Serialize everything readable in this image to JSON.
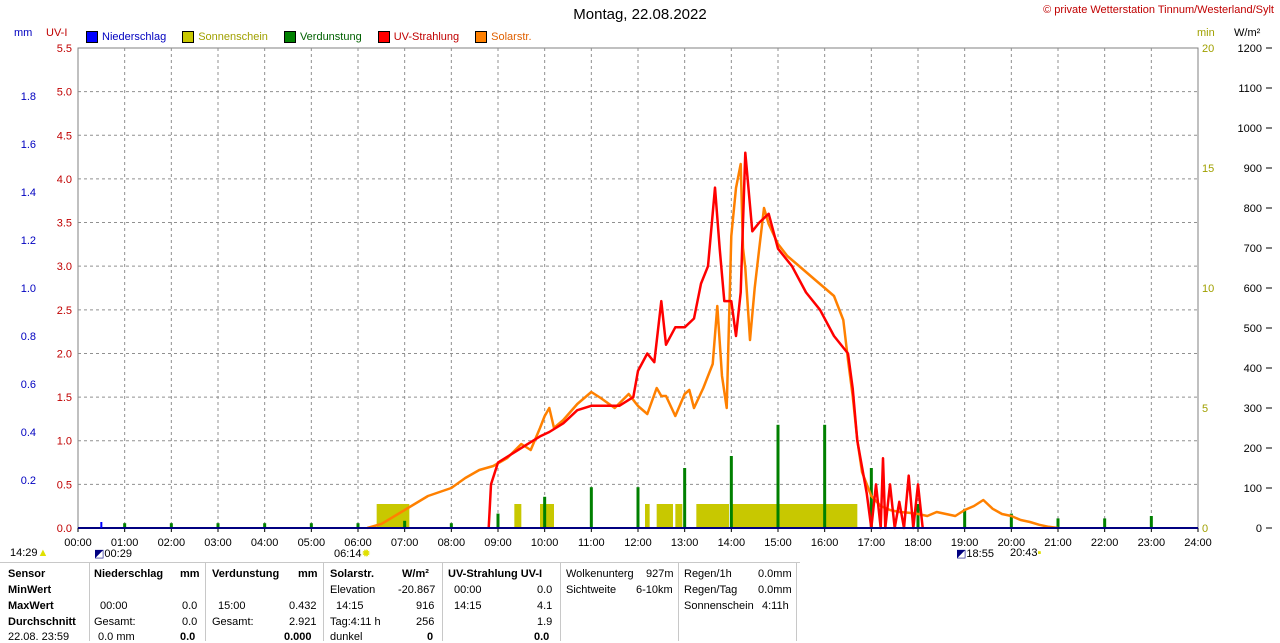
{
  "title": "Montag, 22.08.2022",
  "copyright": "© private Wetterstation Tinnum/Westerland/Sylt",
  "axis_units": {
    "left1": "mm",
    "left2": "UV-I",
    "right1": "min",
    "right2": "W/m²"
  },
  "legend": [
    {
      "label": "Niederschlag",
      "color": "#0000ff",
      "text_color": "#0000c0"
    },
    {
      "label": "Sonnenschein",
      "color": "#c8c800",
      "text_color": "#a0a000"
    },
    {
      "label": "Verdunstung",
      "color": "#008000",
      "text_color": "#006000"
    },
    {
      "label": "UV-Strahlung",
      "color": "#ff0000",
      "text_color": "#c00000"
    },
    {
      "label": "Solarstr.",
      "color": "#ff8000",
      "text_color": "#e06000"
    }
  ],
  "sun_events": {
    "moonrise": "14:29",
    "moonset": "00:29",
    "sunrise": "06:14",
    "sunset": "20:43",
    "moon2": "18:55"
  },
  "chart_data": {
    "type": "line",
    "title": "Montag, 22.08.2022",
    "x_ticks": [
      "00:00",
      "01:00",
      "02:00",
      "03:00",
      "04:00",
      "05:00",
      "06:00",
      "07:00",
      "08:00",
      "09:00",
      "10:00",
      "11:00",
      "12:00",
      "13:00",
      "14:00",
      "15:00",
      "16:00",
      "17:00",
      "18:00",
      "19:00",
      "20:00",
      "21:00",
      "22:00",
      "23:00",
      "24:00"
    ],
    "xlim": [
      0,
      24
    ],
    "axes": {
      "uv": {
        "label": "UV-I",
        "ticks": [
          "0.0",
          "0.5",
          "1.0",
          "1.5",
          "2.0",
          "2.5",
          "3.0",
          "3.5",
          "4.0",
          "4.5",
          "5.0",
          "5.5"
        ],
        "lim": [
          0,
          5.5
        ],
        "color": "#c00000"
      },
      "mm": {
        "label": "mm",
        "ticks": [
          "0.2",
          "0.4",
          "0.6",
          "0.8",
          "1.0",
          "1.2",
          "1.4",
          "1.6",
          "1.8"
        ],
        "lim": [
          0,
          2.0
        ],
        "color": "#0000c0"
      },
      "min": {
        "label": "min",
        "ticks": [
          "0",
          "5",
          "10",
          "15",
          "20"
        ],
        "lim": [
          0,
          20
        ],
        "color": "#a0a000"
      },
      "wm2": {
        "label": "W/m²",
        "ticks": [
          "0",
          "100",
          "200",
          "300",
          "400",
          "500",
          "600",
          "700",
          "800",
          "900",
          "1000",
          "1100",
          "1200"
        ],
        "lim": [
          0,
          1200
        ],
        "color": "#000000"
      }
    },
    "grid": true,
    "series": [
      {
        "name": "Solarstr.",
        "unit": "W/m²",
        "color": "#ff8000",
        "x": [
          6.2,
          6.5,
          7.0,
          7.5,
          8.0,
          8.3,
          8.6,
          8.9,
          9.2,
          9.5,
          9.7,
          9.9,
          10.0,
          10.1,
          10.2,
          10.4,
          10.7,
          11.0,
          11.2,
          11.5,
          11.8,
          12.0,
          12.2,
          12.4,
          12.5,
          12.6,
          12.8,
          13.0,
          13.1,
          13.2,
          13.4,
          13.6,
          13.7,
          13.8,
          13.9,
          14.0,
          14.1,
          14.2,
          14.25,
          14.3,
          14.4,
          14.5,
          14.6,
          14.7,
          14.8,
          15.0,
          15.2,
          15.4,
          15.6,
          15.8,
          16.0,
          16.2,
          16.4,
          16.5,
          16.6,
          16.7,
          16.8,
          17.0,
          17.2,
          17.4,
          17.6,
          17.8,
          18.0,
          18.2,
          18.4,
          18.6,
          18.8,
          19.0,
          19.2,
          19.4,
          19.6,
          19.8,
          20.0,
          20.2,
          20.4,
          20.6,
          20.8,
          21.0
        ],
        "y": [
          0,
          10,
          45,
          80,
          100,
          125,
          145,
          155,
          175,
          210,
          195,
          250,
          280,
          300,
          250,
          270,
          310,
          340,
          325,
          300,
          335,
          305,
          285,
          350,
          330,
          330,
          280,
          335,
          345,
          300,
          350,
          410,
          555,
          380,
          300,
          730,
          850,
          910,
          700,
          650,
          470,
          600,
          700,
          800,
          760,
          710,
          680,
          660,
          640,
          620,
          600,
          580,
          520,
          420,
          330,
          220,
          140,
          80,
          55,
          45,
          40,
          38,
          35,
          30,
          40,
          35,
          30,
          45,
          55,
          70,
          48,
          35,
          30,
          20,
          15,
          8,
          3,
          0
        ]
      },
      {
        "name": "UV-Strahlung",
        "unit": "UV-I",
        "color": "#ff0000",
        "x": [
          8.8,
          8.85,
          9.0,
          9.3,
          9.6,
          9.9,
          10.1,
          10.4,
          10.7,
          11.0,
          11.3,
          11.6,
          11.9,
          12.0,
          12.2,
          12.35,
          12.5,
          12.6,
          12.8,
          13.0,
          13.2,
          13.35,
          13.5,
          13.65,
          13.75,
          13.85,
          14.0,
          14.1,
          14.2,
          14.3,
          14.45,
          14.6,
          14.8,
          15.0,
          15.3,
          15.6,
          15.9,
          16.2,
          16.5,
          16.6,
          16.7,
          16.8,
          16.9,
          17.0,
          17.1,
          17.2,
          17.25,
          17.3,
          17.4,
          17.5,
          17.6,
          17.7,
          17.8,
          17.9,
          18.0,
          18.1
        ],
        "y": [
          0,
          0.5,
          0.75,
          0.85,
          0.95,
          1.05,
          1.1,
          1.2,
          1.35,
          1.4,
          1.4,
          1.4,
          1.5,
          1.8,
          2.0,
          1.9,
          2.6,
          2.1,
          2.3,
          2.3,
          2.4,
          2.8,
          3.0,
          3.9,
          3.2,
          2.6,
          2.6,
          2.2,
          2.7,
          4.3,
          3.4,
          3.5,
          3.6,
          3.2,
          3.0,
          2.7,
          2.5,
          2.2,
          2.0,
          1.6,
          1.0,
          0.7,
          0.4,
          0.0,
          0.5,
          0.0,
          0.8,
          0.0,
          0.5,
          0.0,
          0.3,
          0.0,
          0.6,
          0.0,
          0.5,
          0.0
        ]
      },
      {
        "name": "Verdunstung",
        "unit": "mm",
        "color": "#008000",
        "x": [
          1,
          2,
          3,
          4,
          5,
          6,
          7,
          8,
          9,
          10,
          11,
          12,
          13,
          14,
          15,
          16,
          17,
          18,
          19,
          20,
          21,
          22,
          23
        ],
        "y": [
          0.02,
          0.02,
          0.02,
          0.02,
          0.02,
          0.02,
          0.03,
          0.02,
          0.06,
          0.13,
          0.17,
          0.17,
          0.25,
          0.3,
          0.43,
          0.43,
          0.25,
          0.1,
          0.08,
          0.06,
          0.04,
          0.04,
          0.05
        ]
      },
      {
        "name": "Sonnenschein",
        "unit": "min",
        "color": "#c8c800",
        "intervals": [
          [
            6.4,
            7.1
          ],
          [
            9.35,
            9.5
          ],
          [
            9.9,
            10.2
          ],
          [
            12.15,
            12.25
          ],
          [
            12.4,
            12.75
          ],
          [
            12.8,
            12.95
          ],
          [
            13.25,
            13.95
          ],
          [
            14.0,
            16.7
          ]
        ],
        "value": 1
      }
    ]
  },
  "stats": {
    "labels": {
      "sensor": "Sensor",
      "min": "MinWert",
      "max": "MaxWert",
      "avg": "Durchschnitt",
      "time": "22.08. 23:59"
    },
    "niederschlag": {
      "header": "Niederschlag",
      "unit": "mm",
      "max_time": "00:00",
      "max_val": "0.0",
      "sum_label": "Gesamt:",
      "sum_val": "0.0",
      "last_val": "0.0 mm",
      "last_sum": "0.0"
    },
    "verdunstung": {
      "header": "Verdunstung",
      "unit": "mm",
      "max_time": "15:00",
      "max_val": "0.432",
      "sum_label": "Gesamt:",
      "sum_val": "2.921",
      "last_sum": "0.000"
    },
    "solar": {
      "header": "Solarstr.",
      "unit": "W/m²",
      "elev_label": "Elevation",
      "elev_val": "-20.867",
      "max_time": "14:15",
      "max_val": "916",
      "day_label": "Tag:4:11 h",
      "day_val": "256",
      "dark_label": "dunkel",
      "dark_val": "0"
    },
    "uv": {
      "header": "UV-Strahlung UV-I",
      "min_time": "00:00",
      "min_val": "0.0",
      "max_time": "14:15",
      "max_val": "4.1",
      "avg_val": "1.9",
      "last_val": "0.0"
    },
    "cloud": {
      "l1": "Wolkenunterg",
      "v1": "927m",
      "l2": "Sichtweite",
      "v2": "6-10km"
    },
    "rain": {
      "l1": "Regen/1h",
      "v1": "0.0mm",
      "l2": "Regen/Tag",
      "v2": "0.0mm",
      "l3": "Sonnenschein",
      "v3": "4:11h"
    }
  }
}
